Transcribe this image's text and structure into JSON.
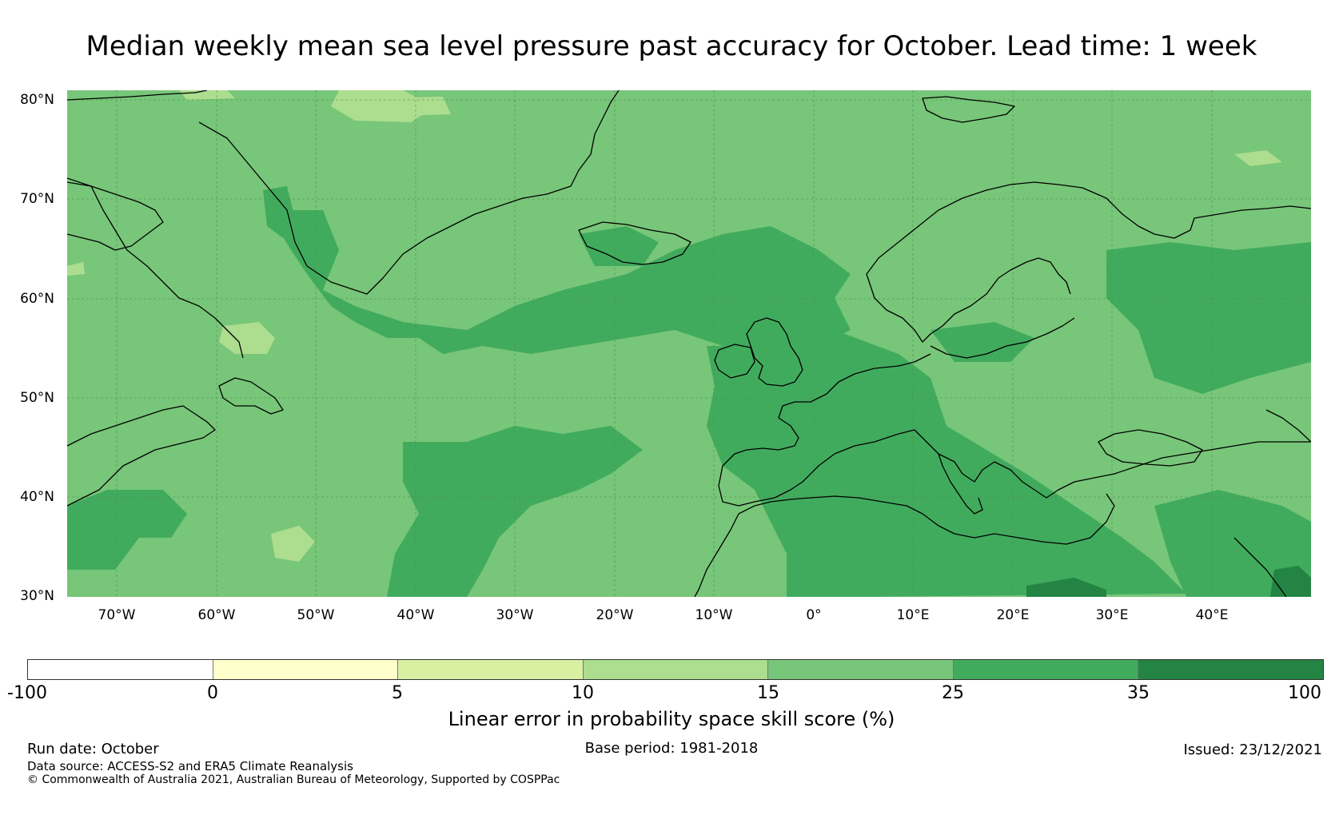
{
  "title": "Median weekly mean sea level pressure past accuracy for October. Lead time: 1 week",
  "map": {
    "lat_labels": [
      "80°N",
      "70°N",
      "60°N",
      "50°N",
      "40°N",
      "30°N"
    ],
    "lon_labels": [
      "70°W",
      "60°W",
      "50°W",
      "40°W",
      "30°W",
      "20°W",
      "10°W",
      "0°",
      "10°E",
      "20°E",
      "30°E",
      "40°E"
    ],
    "lon_range": [
      -75,
      50
    ],
    "lat_range": [
      30,
      81
    ],
    "base_color": "#78c679",
    "coastline_color": "#000000",
    "gridline_color": "#4a8a4a"
  },
  "colorbar": {
    "ticks": [
      "-100",
      "0",
      "5",
      "10",
      "15",
      "25",
      "35",
      "100"
    ],
    "colors": [
      "#ffffff",
      "#ffffcc",
      "#d9f0a3",
      "#addd8e",
      "#78c679",
      "#41ab5d",
      "#238443"
    ],
    "label": "Linear error in probability space skill score (%)"
  },
  "footer": {
    "run_date": "Run date: October",
    "base_period": "Base period: 1981-2018",
    "issued": "Issued: 23/12/2021",
    "data_source": "Data source: ACCESS-S2 and ERA5 Climate Reanalysis",
    "copyright": "© Commonwealth of Australia 2021, Australian Bureau of Meteorology, Supported by COSPPac"
  }
}
